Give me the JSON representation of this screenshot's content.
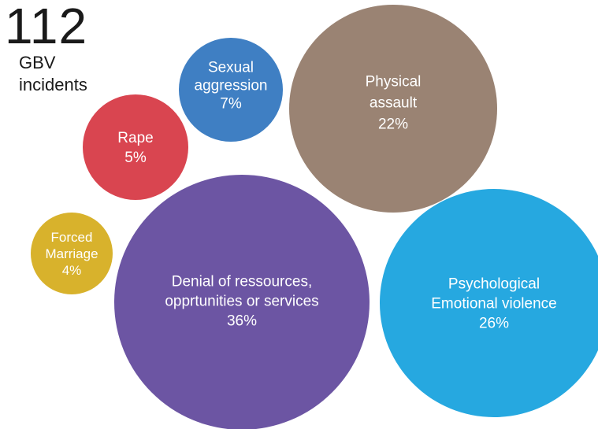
{
  "headline": {
    "count": "112",
    "caption": "GBV\nincidents"
  },
  "chart_data": {
    "type": "bubble",
    "title": "",
    "total_label": "112",
    "bubbles": [
      {
        "name": "Sexual aggression",
        "label_lines": [
          "Sexual",
          "aggression"
        ],
        "percent": 7,
        "value_label": "7%",
        "color": "#3f7fc3"
      },
      {
        "name": "Physical assault",
        "label_lines": [
          "Physical",
          "assault"
        ],
        "percent": 22,
        "value_label": "22%",
        "color": "#9a8373"
      },
      {
        "name": "Rape",
        "label_lines": [
          "Rape"
        ],
        "percent": 5,
        "value_label": "5%",
        "color": "#d94550"
      },
      {
        "name": "Forced Marriage",
        "label_lines": [
          "Forced",
          "Marriage"
        ],
        "percent": 4,
        "value_label": "4%",
        "color": "#d8b22c"
      },
      {
        "name": "Denial of ressources, opprtunities or services",
        "label_lines": [
          "Denial of ressources,",
          "opprtunities or services"
        ],
        "percent": 36,
        "value_label": "36%",
        "color": "#6c55a3"
      },
      {
        "name": "Psychological Emotional violence",
        "label_lines": [
          "Psychological",
          "Emotional violence"
        ],
        "percent": 26,
        "value_label": "26%",
        "color": "#26a8e0"
      }
    ]
  }
}
